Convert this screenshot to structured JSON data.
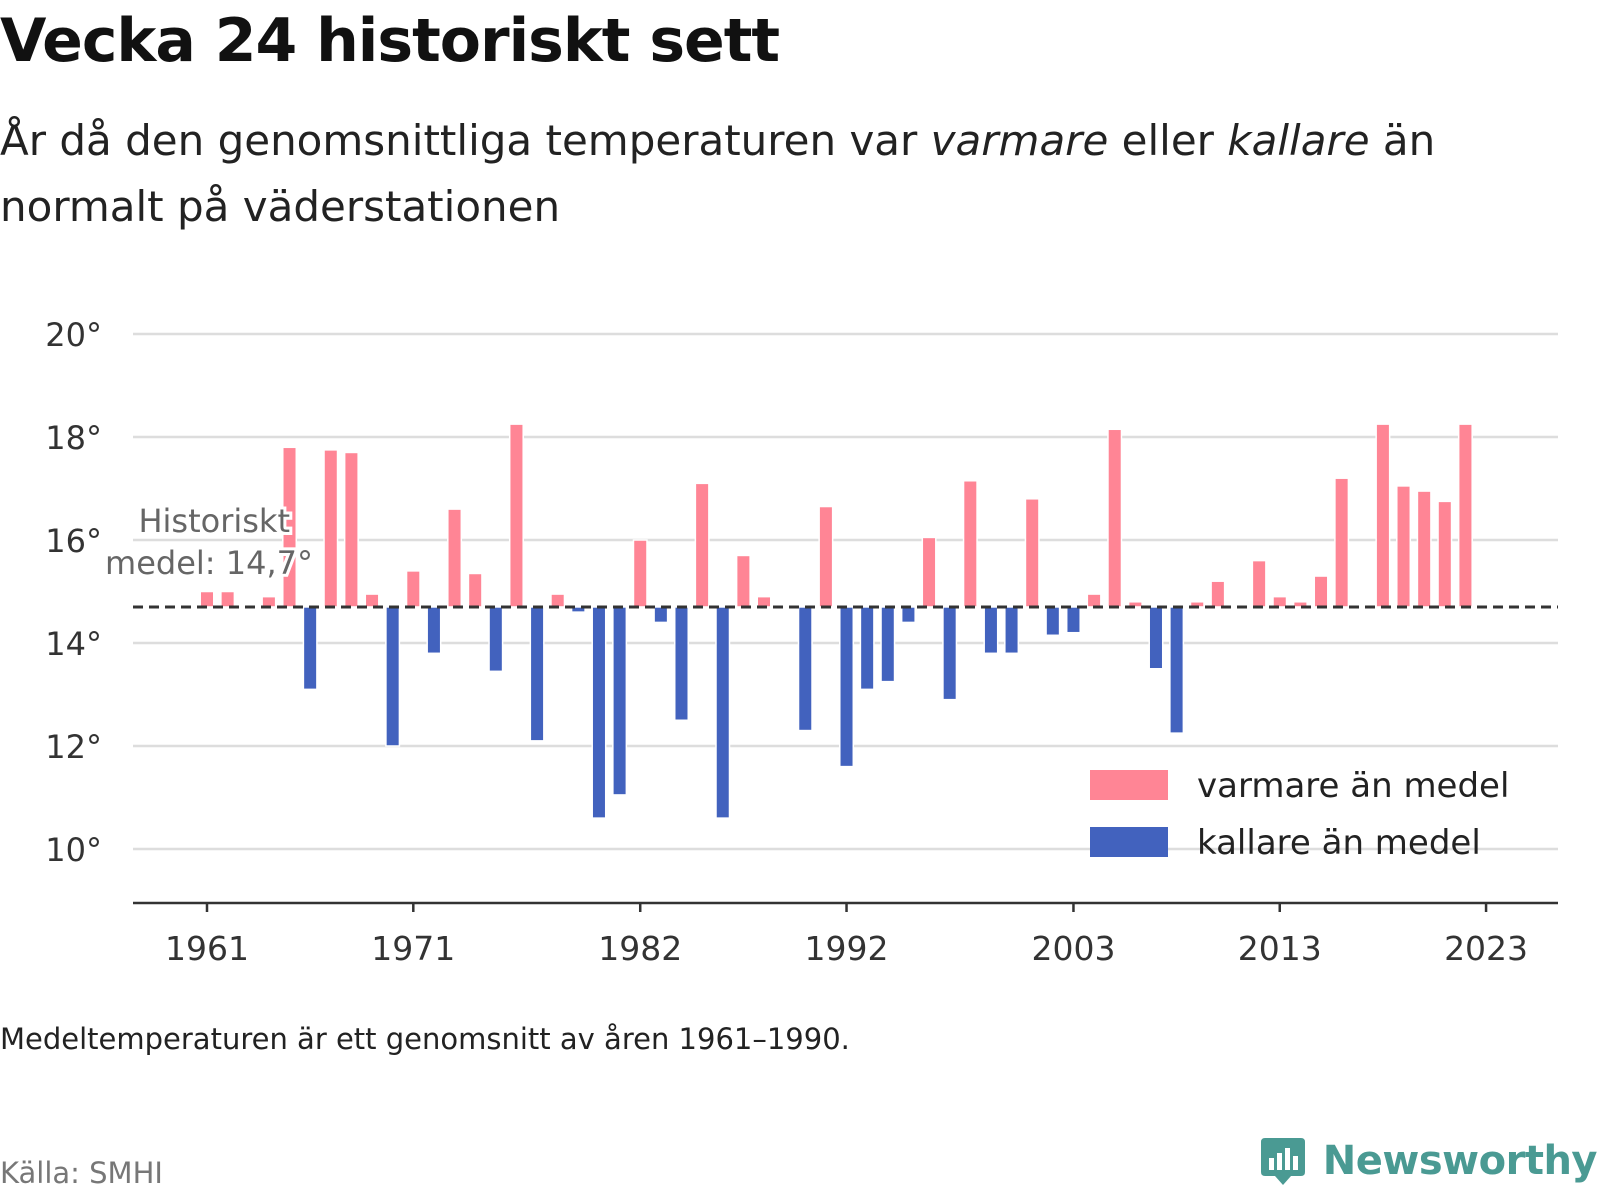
{
  "header": {
    "title": "Vecka 24 historiskt sett",
    "subtitle_pre": "År då den genomsnittliga temperaturen var ",
    "subtitle_em1": "varmare",
    "subtitle_mid": " eller ",
    "subtitle_em2": "kallare",
    "subtitle_post": " än normalt på väderstationen"
  },
  "footer": {
    "note": "Medeltemperaturen är ett genomsnitt av åren 1961–1990.",
    "source": "Källa: SMHI",
    "brand": "Newsworthy"
  },
  "colors": {
    "warm": "#ff8595",
    "cold": "#4262be",
    "grid": "#dddddd",
    "axis": "#333333",
    "brand": "#4a9a93"
  },
  "chart_data": {
    "type": "bar",
    "baseline": 14.7,
    "baseline_label_line1": "Historiskt",
    "baseline_label_line2": "medel: 14,7°",
    "ylim": [
      8.9,
      20.5
    ],
    "y_ticks": [
      10,
      12,
      14,
      16,
      18,
      20
    ],
    "y_tick_labels": [
      "10°",
      "12°",
      "14°",
      "16°",
      "18°",
      "20°"
    ],
    "x_ticks": [
      1961,
      1971,
      1982,
      1992,
      2003,
      2013,
      2023
    ],
    "x_tick_labels": [
      "1961",
      "1971",
      "1982",
      "1992",
      "2003",
      "2013",
      "2023"
    ],
    "legend": [
      {
        "label": "varmare än medel",
        "color": "#ff8595"
      },
      {
        "label": "kallare än medel",
        "color": "#4262be"
      }
    ],
    "legend_position": "bottom-right",
    "grid": true,
    "x": [
      1961,
      1962,
      1963,
      1964,
      1965,
      1966,
      1967,
      1968,
      1969,
      1970,
      1971,
      1972,
      1973,
      1974,
      1975,
      1976,
      1977,
      1978,
      1979,
      1980,
      1981,
      1982,
      1983,
      1984,
      1985,
      1986,
      1987,
      1988,
      1989,
      1990,
      1991,
      1992,
      1993,
      1994,
      1995,
      1996,
      1997,
      1998,
      1999,
      2000,
      2001,
      2002,
      2003,
      2004,
      2005,
      2006,
      2007,
      2008,
      2009,
      2010,
      2011,
      2012,
      2013,
      2014,
      2015,
      2016,
      2017,
      2018,
      2019,
      2020,
      2021,
      2022,
      2023
    ],
    "values": [
      15.0,
      15.0,
      14.7,
      14.9,
      17.8,
      13.1,
      17.75,
      17.7,
      14.95,
      12.0,
      15.4,
      13.8,
      16.6,
      15.35,
      13.45,
      18.25,
      12.1,
      14.95,
      14.6,
      10.6,
      11.05,
      16.0,
      14.4,
      12.5,
      17.1,
      10.6,
      15.7,
      14.9,
      14.7,
      12.3,
      16.65,
      11.6,
      13.1,
      13.25,
      14.4,
      16.05,
      12.9,
      17.15,
      13.8,
      13.8,
      16.8,
      14.15,
      14.2,
      14.95,
      18.15,
      14.8,
      13.5,
      12.25,
      14.8,
      15.2,
      14.7,
      15.6,
      14.9,
      14.8,
      15.3,
      17.2,
      14.7,
      18.25,
      17.05,
      16.95,
      16.75,
      18.25,
      14.7
    ]
  }
}
